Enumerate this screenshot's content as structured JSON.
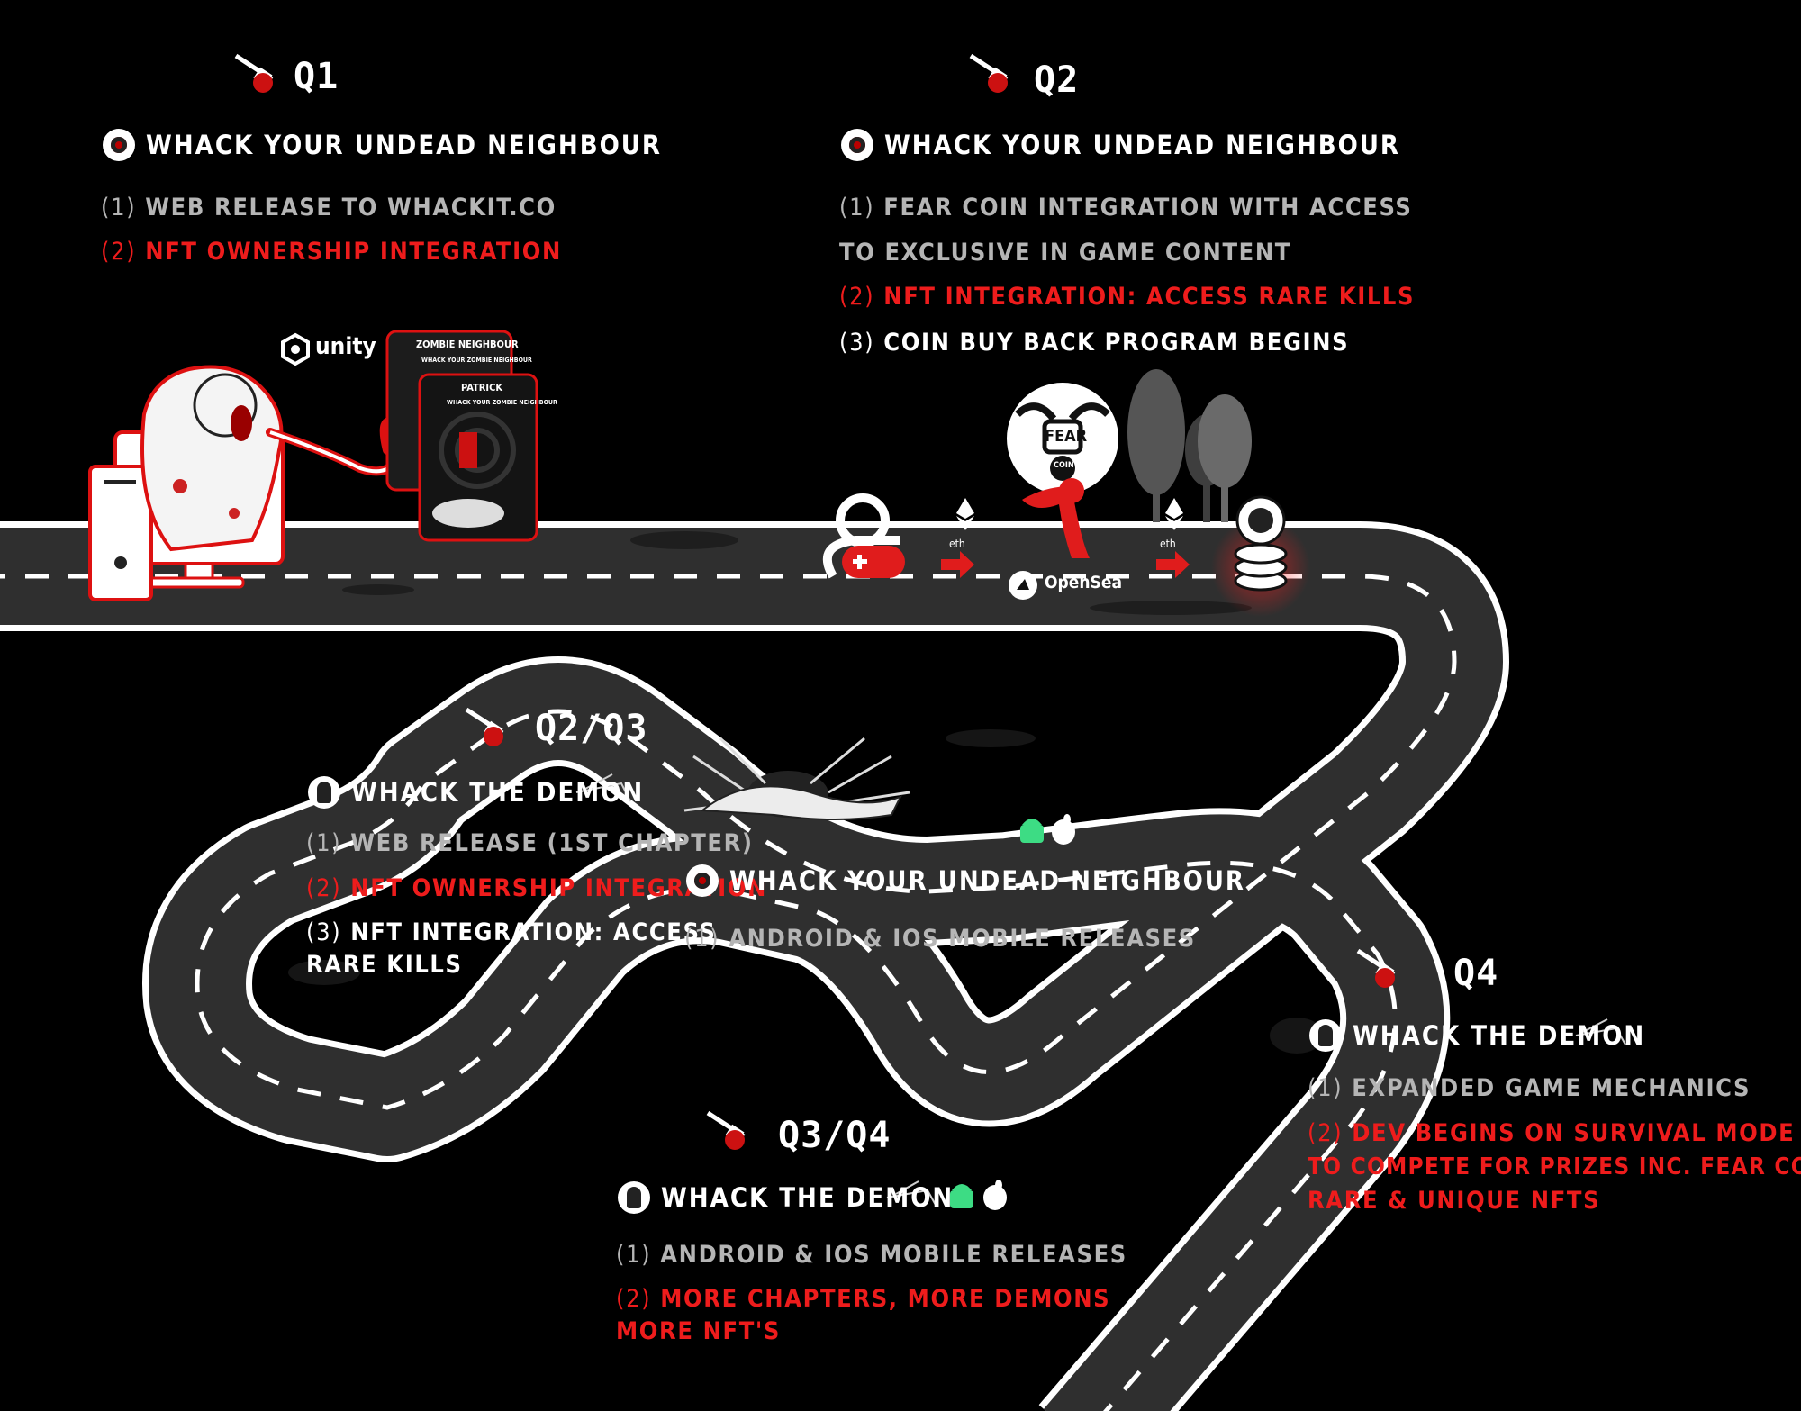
{
  "quarters": [
    {
      "id": "q1",
      "title": "Q1",
      "game": "WHACK YOUR UNDEAD NEIGHBOUR",
      "items": [
        {
          "num": "(1)",
          "text": "WEB RELEASE TO WHACKIT.CO",
          "color": "grey"
        },
        {
          "num": "(2)",
          "text": "NFT OWNERSHIP INTEGRATION",
          "color": "red"
        }
      ]
    },
    {
      "id": "q2",
      "title": "Q2",
      "game": "WHACK YOUR UNDEAD NEIGHBOUR",
      "items": [
        {
          "num": "(1)",
          "text": "FEAR COIN INTEGRATION WITH ACCESS",
          "color": "grey"
        },
        {
          "num": "",
          "text": "TO EXCLUSIVE IN GAME CONTENT",
          "color": "grey"
        },
        {
          "num": "(2)",
          "text": "NFT INTEGRATION: ACCESS RARE KILLS",
          "color": "red"
        },
        {
          "num": "(3)",
          "text": "COIN BUY BACK PROGRAM BEGINS",
          "color": "white"
        }
      ]
    },
    {
      "id": "q2q3",
      "title": "Q2/Q3",
      "game": "WHACK THE DEMON",
      "items": [
        {
          "num": "(1)",
          "text": "WEB RELEASE (1ST CHAPTER)",
          "color": "grey"
        },
        {
          "num": "(2)",
          "text": "NFT OWNERSHIP INTEGRATION",
          "color": "red"
        },
        {
          "num": "(3)",
          "text": "NFT INTEGRATION: ACCESS",
          "color": "white"
        },
        {
          "num": "",
          "text": "RARE KILLS",
          "color": "white"
        }
      ],
      "sub": {
        "game": "WHACK YOUR UNDEAD NEIGHBOUR",
        "items": [
          {
            "num": "(1)",
            "text": "ANDROID & IOS MOBILE RELEASES",
            "color": "grey"
          }
        ]
      }
    },
    {
      "id": "q3q4",
      "title": "Q3/Q4",
      "game": "WHACK THE DEMON",
      "items": [
        {
          "num": "(1)",
          "text": "ANDROID & IOS MOBILE RELEASES",
          "color": "grey"
        },
        {
          "num": "(2)",
          "text": "MORE CHAPTERS, MORE DEMONS",
          "color": "red"
        },
        {
          "num": "",
          "text": "MORE NFT'S",
          "color": "red"
        }
      ]
    },
    {
      "id": "q4",
      "title": "Q4",
      "game": "WHACK THE DEMON",
      "items": [
        {
          "num": "(1)",
          "text": "EXPANDED GAME MECHANICS",
          "color": "grey"
        },
        {
          "num": "(2)",
          "text": "DEV BEGINS ON SURVIVAL MODE",
          "color": "red"
        },
        {
          "num": "",
          "text": "TO COMPETE FOR PRIZES INC. FEAR COIN,",
          "color": "red"
        },
        {
          "num": "",
          "text": "RARE & UNIQUE NFTS",
          "color": "red"
        }
      ]
    }
  ],
  "brands": {
    "unity": "unity",
    "opensea": "OpenSea",
    "eth_1": "eth",
    "eth_2": "eth",
    "fear_coin": "FEAR",
    "fear_coin_sub": "COIN"
  },
  "posters": {
    "top": {
      "title": "ZOMBIE NEIGHBOUR",
      "sub": "WHACK YOUR ZOMBIE NEIGHBOUR"
    },
    "front": {
      "title": "PATRICK",
      "sub": "WHACK YOUR ZOMBIE NEIGHBOUR"
    }
  },
  "colors": {
    "road": "#2f2f2f",
    "road_edge": "#ffffff",
    "accent_red": "#ee1c1c",
    "text_grey": "#b5b5b5"
  },
  "icons": {
    "quarter_marker": "bloody-axe-icon",
    "game_wyun": "zombie-eyeball-icon",
    "game_wtd": "demon-face-icon",
    "android": "android-icon",
    "apple": "apple-icon",
    "ethereum": "ethereum-icon",
    "opensea": "opensea-icon",
    "gamepad": "gamepad-icon",
    "arrow": "right-arrow-icon",
    "coin_stack": "coin-stack-icon"
  }
}
